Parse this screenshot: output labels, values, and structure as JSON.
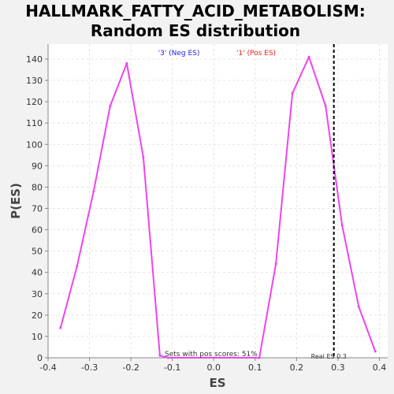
{
  "chart_data": {
    "type": "line",
    "title_line1": "HALLMARK_FATTY_ACID_METABOLISM:",
    "title_line2": "Random ES distribution",
    "xlabel": "ES",
    "ylabel": "P(ES)",
    "xlim": [
      -0.4,
      0.42
    ],
    "ylim": [
      0,
      147
    ],
    "x_ticks": [
      "-0.4",
      "-0.3",
      "-0.2",
      "-0.1",
      "0.0",
      "0.1",
      "0.2",
      "0.3",
      "0.4"
    ],
    "y_ticks": [
      "0",
      "10",
      "20",
      "30",
      "40",
      "50",
      "60",
      "70",
      "80",
      "90",
      "100",
      "110",
      "120",
      "130",
      "140"
    ],
    "grid": true,
    "legend": {
      "neg_label": "'3' (Neg ES)",
      "pos_label": "'1' (Pos ES)",
      "neg_color": "#2020ee",
      "pos_color": "#ee2020"
    },
    "series": [
      {
        "color": "#ee44ee",
        "x": [
          -0.37,
          -0.33,
          -0.29,
          -0.25,
          -0.21,
          -0.17,
          -0.13,
          -0.11,
          0.11,
          0.15,
          0.19,
          0.23,
          0.27,
          0.31,
          0.35,
          0.39
        ],
        "y": [
          14,
          43,
          78,
          118,
          138,
          94,
          1,
          0,
          0,
          44,
          124,
          141,
          118,
          62,
          24,
          3
        ]
      }
    ],
    "real_es": {
      "value": 0.29,
      "label": "Real ES 0.3"
    },
    "pos_scores_note": "Sets with pos scores: 51%"
  }
}
